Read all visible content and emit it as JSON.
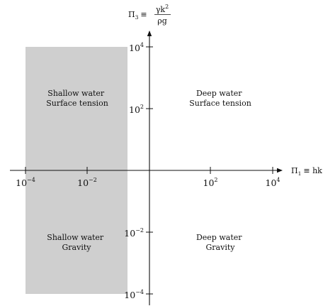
{
  "colors": {
    "background": "#ffffff",
    "shallow_region": "#cfcfcf",
    "axis": "#111111",
    "text": "#111111"
  },
  "axes": {
    "x_label": {
      "symbol": "Π",
      "subscript": "1",
      "rhs": "≡ hk"
    },
    "y_label": {
      "symbol": "Π",
      "subscript": "3",
      "rhs": "≡",
      "numerator": "γk",
      "numerator_sup": "2",
      "denominator": "ρg"
    },
    "x_ticks": [
      {
        "base": "10",
        "exp": "−4"
      },
      {
        "base": "10",
        "exp": "−2"
      },
      {
        "base": "10",
        "exp": "2"
      },
      {
        "base": "10",
        "exp": "4"
      }
    ],
    "y_ticks": [
      {
        "base": "10",
        "exp": "4"
      },
      {
        "base": "10",
        "exp": "2"
      },
      {
        "base": "10",
        "exp": "−2"
      },
      {
        "base": "10",
        "exp": "−4"
      }
    ]
  },
  "regions": {
    "shallow_surface": {
      "line1": "Shallow water",
      "line2": "Surface tension"
    },
    "deep_surface": {
      "line1": "Deep water",
      "line2": "Surface tension"
    },
    "shallow_gravity": {
      "line1": "Shallow water",
      "line2": "Gravity"
    },
    "deep_gravity": {
      "line1": "Deep water",
      "line2": "Gravity"
    }
  }
}
